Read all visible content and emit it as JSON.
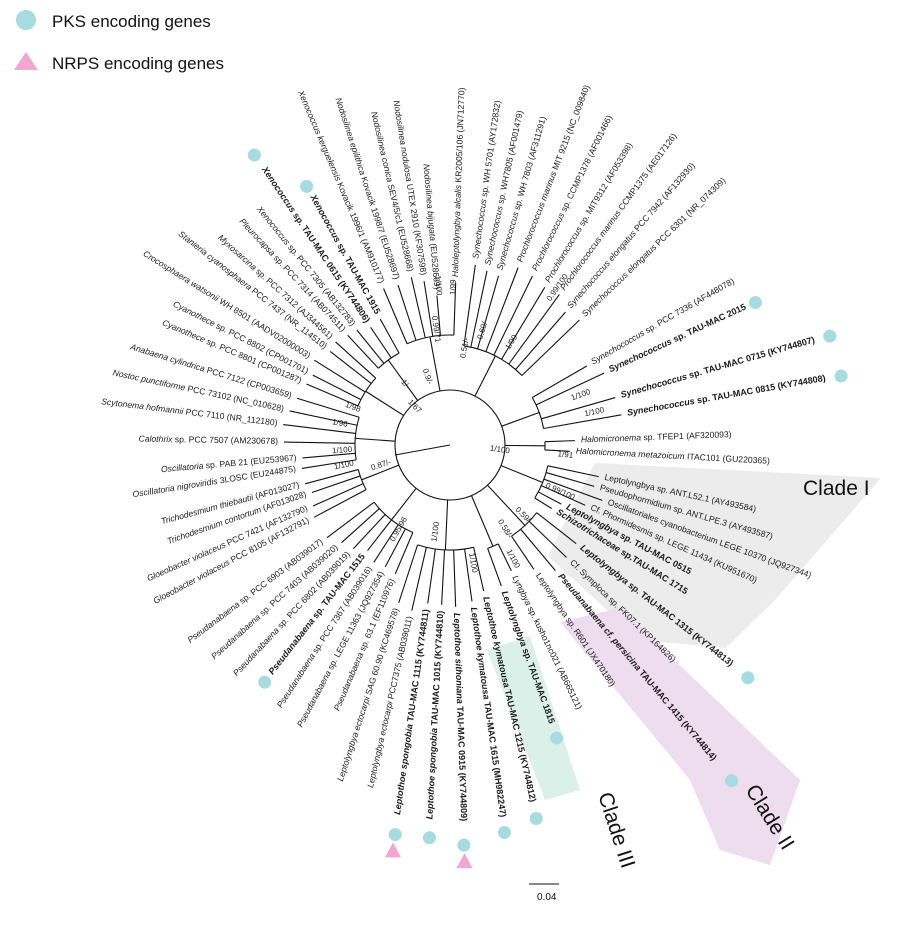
{
  "legend": {
    "pks_label": "PKS encoding genes",
    "nrps_label": "NRPS encoding genes",
    "pks_color": "#a6dbe0",
    "nrps_color": "#f2a7d2"
  },
  "scale_bar": {
    "label": "0.04"
  },
  "clades": [
    {
      "id": "clade1",
      "label": "Clade I",
      "color": "#ececec"
    },
    {
      "id": "clade2",
      "label": "Clade II",
      "color": "#eedcef"
    },
    {
      "id": "clade3",
      "label": "Clade III",
      "color": "#dcf0ea"
    }
  ],
  "supports": [
    {
      "text": "1/99"
    },
    {
      "text": "1/100"
    },
    {
      "text": "0.69/-"
    },
    {
      "text": "1/99"
    },
    {
      "text": "0.51/-"
    },
    {
      "text": "0.99/100"
    },
    {
      "text": "1/100"
    },
    {
      "text": "1/100"
    },
    {
      "text": "1/100"
    },
    {
      "text": "1/91"
    },
    {
      "text": "0.99/100"
    },
    {
      "text": "0.59/-"
    },
    {
      "text": "0.58/-"
    },
    {
      "text": "1/100"
    },
    {
      "text": "1/100"
    },
    {
      "text": "1/100"
    },
    {
      "text": "0.95/96"
    },
    {
      "text": "0.87/-"
    },
    {
      "text": "1/100"
    },
    {
      "text": "1/100"
    },
    {
      "text": "1/96"
    },
    {
      "text": "1/98"
    },
    {
      "text": "1/-"
    },
    {
      "text": "0.9/-"
    },
    {
      "text": "0.99/71"
    },
    {
      "text": "1/67"
    }
  ],
  "leaves": [
    {
      "genus": "Synechococcus",
      "rest": " sp. WH 5701 (AY172832)",
      "bold": false,
      "pks": false,
      "nrps": false
    },
    {
      "genus": "Synechococcus",
      "rest": " sp. WH7805 (AF001479)",
      "bold": false,
      "pks": false,
      "nrps": false
    },
    {
      "genus": "Synechococcus",
      "rest": " sp. WH 7803 (AF311291)",
      "bold": false,
      "pks": false,
      "nrps": false
    },
    {
      "genus": "Prochlorococcus marinus",
      "rest": " MIT 9215 (NC_009840)",
      "bold": false,
      "pks": false,
      "nrps": false
    },
    {
      "genus": "Prochlorococcus",
      "rest": " sp. CCMP1378 (AF001466)",
      "bold": false,
      "pks": false,
      "nrps": false
    },
    {
      "genus": "Prochlorococcus",
      "rest": " sp. MIT9312 (AF053398)",
      "bold": false,
      "pks": false,
      "nrps": false
    },
    {
      "genus": "Prochlorococcus marinus",
      "rest": " CCMP1375 (AE017126)",
      "bold": false,
      "pks": false,
      "nrps": false
    },
    {
      "genus": "Synechococcus elongatus",
      "rest": " PCC 7942 (AF132930)",
      "bold": false,
      "pks": false,
      "nrps": false
    },
    {
      "genus": "Synechococcus elongatus",
      "rest": " PCC 6301 (NR_074309)",
      "bold": false,
      "pks": false,
      "nrps": false
    },
    {
      "genus": "Synechococcus",
      "rest": " sp. PCC 7336 (AF448078)",
      "bold": false,
      "pks": false,
      "nrps": false
    },
    {
      "genus": "Synechococcus",
      "rest": " sp. TAU-MAC 2015",
      "bold": true,
      "pks": true,
      "nrps": false
    },
    {
      "genus": "Synechococcus",
      "rest": " sp. TAU-MAC 0715 (KY744807)",
      "bold": true,
      "pks": true,
      "nrps": false
    },
    {
      "genus": "Synechococcus",
      "rest": " sp. TAU-MAC 0815 (KY744808)",
      "bold": true,
      "pks": true,
      "nrps": false
    },
    {
      "genus": "Halomicronema",
      "rest": " sp. TFEP1 (AF320093)",
      "bold": false,
      "pks": false,
      "nrps": false
    },
    {
      "genus": "Halomicronema metazoicum",
      "rest": " ITAC101 (GU220365)",
      "bold": false,
      "pks": false,
      "nrps": false
    },
    {
      "genus": "",
      "rest": "Leptolyngbya sp. ANT.L52.1 (AY493584)",
      "bold": false,
      "pks": false,
      "nrps": false
    },
    {
      "genus": "",
      "rest": "Pseudophormidium sp. ANT.LPE.3 (AY493587)",
      "bold": false,
      "pks": false,
      "nrps": false
    },
    {
      "genus": "",
      "rest": "Oscillatoriales cyanobacterium LEGE 10370 (JQ927344)",
      "bold": false,
      "pks": false,
      "nrps": false
    },
    {
      "genus": "",
      "rest": "Cf. Phormidesmis sp. LEGE 11434 (KU951670)",
      "bold": false,
      "pks": false,
      "nrps": false
    },
    {
      "genus": "Leptolyngbya",
      "rest": " sp. TAU-MAC 0515",
      "bold": true,
      "pks": false,
      "nrps": false
    },
    {
      "genus": "Schizotrichaceae",
      "rest": " sp.TAU-MAC 1715",
      "bold": true,
      "pks": false,
      "nrps": false
    },
    {
      "genus": "Leptolyngbya",
      "rest": " sp. TAU-MAC 1315 (KY744813)",
      "bold": true,
      "pks": true,
      "nrps": false
    },
    {
      "genus": "",
      "rest": "Cf. Symploca sp. FK07.1 (KP164826)",
      "bold": false,
      "pks": false,
      "nrps": false
    },
    {
      "genus": "Pseudanabaena cf. persicina",
      "rest": " TAU-MAC 1415 (KY744814)",
      "bold": true,
      "pks": true,
      "nrps": false
    },
    {
      "genus": "",
      "rest": "Leptolyngbya sp. R601 (JX470180)",
      "bold": false,
      "pks": false,
      "nrps": false
    },
    {
      "genus": "Lyngbya",
      "rest": " sp. kusho1nc021 (AB665121)",
      "bold": false,
      "pks": false,
      "nrps": false
    },
    {
      "genus": "Leptolyngbya",
      "rest": " sp. TAU-MAC 1815",
      "bold": true,
      "pks": true,
      "nrps": false
    },
    {
      "genus": "Leptothoe kymatousa",
      "rest": " TAU-MAC 1215 (KY744812)",
      "bold": true,
      "pks": true,
      "nrps": false
    },
    {
      "genus": "Leptothoe kymatousa",
      "rest": " TAU-MAC 1615 (MH982247)",
      "bold": true,
      "pks": true,
      "nrps": false
    },
    {
      "genus": "Leptothoe sithoniana",
      "rest": " TAU-MAC 0915 (KY744809)",
      "bold": true,
      "pks": true,
      "nrps": true
    },
    {
      "genus": "Leptothoe spongobia",
      "rest": " TAU-MAC 1015 (KY744810)",
      "bold": true,
      "pks": true,
      "nrps": false
    },
    {
      "genus": "Leptothoe spongobia",
      "rest": " TAU-MAC 1115 (KY744811)",
      "bold": true,
      "pks": true,
      "nrps": true
    },
    {
      "genus": "Leptolyngbya ectocarpi",
      "rest": " PCC7375 (AB039011)",
      "bold": false,
      "pks": false,
      "nrps": false
    },
    {
      "genus": "Leptolyngbya ectocarpi",
      "rest": " SAG 60.90 (KC469578)",
      "bold": false,
      "pks": false,
      "nrps": false
    },
    {
      "genus": "Pseudanabaena",
      "rest": " sp. 63.1 (EF110976)",
      "bold": false,
      "pks": false,
      "nrps": false
    },
    {
      "genus": "Pseudanabaena",
      "rest": " sp. LEGE 11363 (JQ927354)",
      "bold": false,
      "pks": false,
      "nrps": false
    },
    {
      "genus": "Pseudanabaena",
      "rest": " sp. PCC 7367 (AB039016)",
      "bold": false,
      "pks": false,
      "nrps": false
    },
    {
      "genus": "Pseudanabaena",
      "rest": " sp. TAU-MAC 1515",
      "bold": true,
      "pks": true,
      "nrps": false
    },
    {
      "genus": "Pseudanabaena",
      "rest": " sp. PCC 6802 (AB039019)",
      "bold": false,
      "pks": false,
      "nrps": false
    },
    {
      "genus": "Pseudanabaena",
      "rest": " sp. PCC 7403 (AB039020)",
      "bold": false,
      "pks": false,
      "nrps": false
    },
    {
      "genus": "Pseudanabaena",
      "rest": " sp. PCC 6903 (AB039017)",
      "bold": false,
      "pks": false,
      "nrps": false
    },
    {
      "genus": "Gloeobacter violaceus",
      "rest": " PCC 8105 (AF132791)",
      "bold": false,
      "pks": false,
      "nrps": false
    },
    {
      "genus": "Gloeobacter violaceus",
      "rest": " PCC 7421 (AF132790)",
      "bold": false,
      "pks": false,
      "nrps": false
    },
    {
      "genus": "Trichodesmium contortum",
      "rest": " (AF013028)",
      "bold": false,
      "pks": false,
      "nrps": false
    },
    {
      "genus": "Trichodesmium thiebautii",
      "rest": " (AF013027)",
      "bold": false,
      "pks": false,
      "nrps": false
    },
    {
      "genus": "Oscillatoria nigroviridis",
      "rest": " 3LOSC (EU244875)",
      "bold": false,
      "pks": false,
      "nrps": false
    },
    {
      "genus": "Oscillatoria",
      "rest": " sp. PAB 21 (EU253967)",
      "bold": false,
      "pks": false,
      "nrps": false
    },
    {
      "genus": "Calothrix",
      "rest": " sp. PCC 7507 (AM230678)",
      "bold": false,
      "pks": false,
      "nrps": false
    },
    {
      "genus": "Scytonema hofmannii",
      "rest": " PCC 7110 (NR_112180)",
      "bold": false,
      "pks": false,
      "nrps": false
    },
    {
      "genus": "Nostoc punctiforme",
      "rest": " PCC 73102 (NC_010628)",
      "bold": false,
      "pks": false,
      "nrps": false
    },
    {
      "genus": "Anabaena cylindrica",
      "rest": " PCC 7122 (CP003659)",
      "bold": false,
      "pks": false,
      "nrps": false
    },
    {
      "genus": "Cyanothece",
      "rest": " sp. PCC 8801 (CP001287)",
      "bold": false,
      "pks": false,
      "nrps": false
    },
    {
      "genus": "Cyanothece",
      "rest": " sp. PCC 8802 (CP001701)",
      "bold": false,
      "pks": false,
      "nrps": false
    },
    {
      "genus": "Crocosphaera watsonii",
      "rest": " WH 8501 (AADV02000003)",
      "bold": false,
      "pks": false,
      "nrps": false
    },
    {
      "genus": "Stanieria cyanosphaera",
      "rest": " PCC 7437 (NR_114510)",
      "bold": false,
      "pks": false,
      "nrps": false
    },
    {
      "genus": "Myxosarcina",
      "rest": " sp. PCC 7312 (AJ344561)",
      "bold": false,
      "pks": false,
      "nrps": false
    },
    {
      "genus": "Pleurocapsa",
      "rest": " sp. PCC 7314 (AB074511)",
      "bold": false,
      "pks": false,
      "nrps": false
    },
    {
      "genus": "Xenococcus",
      "rest": " sp. PCC 7305 (AB132783)",
      "bold": false,
      "pks": false,
      "nrps": false
    },
    {
      "genus": "Xenococcus",
      "rest": " sp. TAU-MAC 0615 (KY744806)",
      "bold": true,
      "pks": true,
      "nrps": false
    },
    {
      "genus": "Xenococcus",
      "rest": " sp. TAU-MAC 1915",
      "bold": true,
      "pks": true,
      "nrps": false
    },
    {
      "genus": "Xenococcus kerguelensis",
      "rest": " Kovacik 1996/1 (AM910177)",
      "bold": false,
      "pks": false,
      "nrps": false
    },
    {
      "genus": "Nodosilinea epilithica",
      "rest": " Kovacik 1998/7 (EU528697)",
      "bold": false,
      "pks": false,
      "nrps": false
    },
    {
      "genus": "Nodosilinea conica",
      "rest": " SEV4/5/c1 (EU528668)",
      "bold": false,
      "pks": false,
      "nrps": false
    },
    {
      "genus": "Nodosilinea nodulosa",
      "rest": " UTEX 2910 (KF307598)",
      "bold": false,
      "pks": false,
      "nrps": false
    },
    {
      "genus": "Nodosilinea bijugata",
      "rest": " (EU528669)",
      "bold": false,
      "pks": false,
      "nrps": false
    },
    {
      "genus": "Haloleptolyngbya alcalis",
      "rest": " KR2005/106 (JN712770)",
      "bold": false,
      "pks": false,
      "nrps": false
    }
  ]
}
